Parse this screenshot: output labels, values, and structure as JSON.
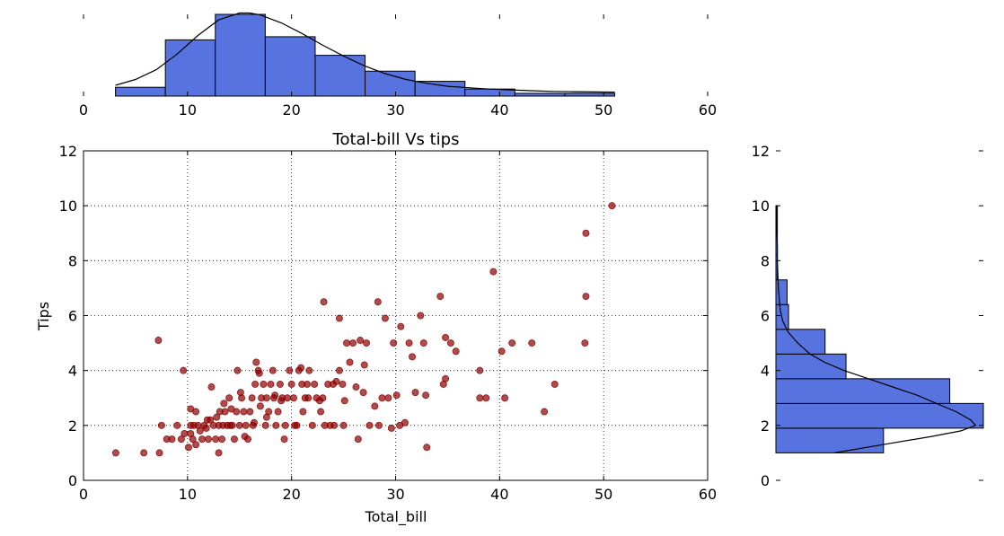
{
  "chart_data": [
    {
      "type": "scatter",
      "title": "Total-bill Vs tips",
      "xlabel": "Total_bill",
      "ylabel": "Tips",
      "xlim": [
        0,
        60
      ],
      "ylim": [
        0,
        12
      ],
      "xticks": [
        "0",
        "10",
        "20",
        "30",
        "40",
        "50",
        "60"
      ],
      "yticks": [
        "0",
        "2",
        "4",
        "6",
        "8",
        "10",
        "12"
      ],
      "grid": true,
      "marker_color": "#8b0000",
      "points": [
        [
          3.1,
          1.0
        ],
        [
          5.8,
          1.0
        ],
        [
          7.3,
          1.0
        ],
        [
          7.2,
          5.1
        ],
        [
          7.5,
          2.0
        ],
        [
          8.0,
          1.5
        ],
        [
          8.5,
          1.5
        ],
        [
          9.0,
          2.0
        ],
        [
          9.4,
          1.5
        ],
        [
          9.6,
          4.0
        ],
        [
          9.7,
          1.7
        ],
        [
          10.1,
          1.2
        ],
        [
          10.3,
          1.7
        ],
        [
          10.3,
          2.0
        ],
        [
          10.5,
          1.5
        ],
        [
          10.6,
          2.0
        ],
        [
          10.8,
          1.3
        ],
        [
          10.3,
          2.6
        ],
        [
          11.0,
          2.0
        ],
        [
          11.2,
          1.8
        ],
        [
          11.4,
          1.5
        ],
        [
          11.6,
          2.0
        ],
        [
          11.9,
          2.2
        ],
        [
          12.0,
          1.5
        ],
        [
          12.3,
          3.4
        ],
        [
          12.5,
          2.0
        ],
        [
          12.7,
          1.5
        ],
        [
          12.8,
          2.3
        ],
        [
          13.0,
          2.0
        ],
        [
          13.1,
          2.5
        ],
        [
          13.3,
          1.5
        ],
        [
          13.4,
          2.0
        ],
        [
          13.6,
          2.5
        ],
        [
          13.0,
          1.0
        ],
        [
          13.8,
          2.0
        ],
        [
          14.0,
          3.0
        ],
        [
          14.1,
          2.0
        ],
        [
          14.3,
          2.0
        ],
        [
          14.5,
          1.5
        ],
        [
          14.7,
          2.5
        ],
        [
          14.8,
          4.0
        ],
        [
          15.0,
          2.0
        ],
        [
          15.2,
          3.0
        ],
        [
          15.4,
          2.5
        ],
        [
          15.6,
          2.0
        ],
        [
          15.8,
          1.5
        ],
        [
          16.0,
          2.5
        ],
        [
          16.2,
          3.0
        ],
        [
          16.3,
          2.0
        ],
        [
          16.5,
          3.5
        ],
        [
          16.6,
          4.3
        ],
        [
          16.8,
          4.0
        ],
        [
          17.0,
          2.7
        ],
        [
          17.1,
          3.0
        ],
        [
          17.3,
          3.5
        ],
        [
          17.5,
          2.0
        ],
        [
          17.6,
          3.0
        ],
        [
          17.8,
          2.5
        ],
        [
          18.0,
          3.5
        ],
        [
          18.2,
          4.0
        ],
        [
          18.3,
          3.0
        ],
        [
          18.5,
          2.0
        ],
        [
          18.7,
          2.5
        ],
        [
          18.9,
          3.5
        ],
        [
          19.1,
          3.0
        ],
        [
          19.3,
          1.5
        ],
        [
          19.4,
          2.0
        ],
        [
          19.6,
          3.0
        ],
        [
          19.8,
          4.0
        ],
        [
          20.0,
          3.5
        ],
        [
          20.2,
          3.0
        ],
        [
          20.5,
          2.0
        ],
        [
          20.7,
          4.0
        ],
        [
          21.0,
          3.5
        ],
        [
          21.1,
          2.5
        ],
        [
          21.3,
          3.0
        ],
        [
          21.5,
          3.5
        ],
        [
          21.7,
          4.0
        ],
        [
          22.0,
          2.0
        ],
        [
          22.2,
          3.5
        ],
        [
          22.4,
          3.0
        ],
        [
          22.8,
          2.5
        ],
        [
          23.0,
          3.0
        ],
        [
          23.2,
          2.0
        ],
        [
          23.5,
          3.5
        ],
        [
          23.7,
          2.0
        ],
        [
          24.0,
          3.5
        ],
        [
          24.1,
          2.0
        ],
        [
          24.3,
          3.6
        ],
        [
          24.6,
          4.0
        ],
        [
          24.9,
          3.5
        ],
        [
          25.0,
          2.0
        ],
        [
          25.3,
          5.0
        ],
        [
          25.6,
          4.3
        ],
        [
          25.9,
          5.0
        ],
        [
          26.2,
          3.4
        ],
        [
          26.4,
          1.5
        ],
        [
          26.9,
          3.2
        ],
        [
          27.2,
          5.0
        ],
        [
          27.5,
          2.0
        ],
        [
          28.0,
          2.7
        ],
        [
          28.3,
          6.5
        ],
        [
          28.4,
          2.0
        ],
        [
          28.7,
          3.0
        ],
        [
          29.0,
          5.9
        ],
        [
          29.3,
          3.0
        ],
        [
          29.8,
          5.0
        ],
        [
          30.1,
          3.1
        ],
        [
          30.4,
          2.0
        ],
        [
          30.5,
          5.6
        ],
        [
          31.3,
          5.0
        ],
        [
          31.6,
          4.5
        ],
        [
          31.9,
          3.2
        ],
        [
          32.4,
          6.0
        ],
        [
          32.7,
          5.0
        ],
        [
          32.9,
          3.1
        ],
        [
          33.0,
          1.2
        ],
        [
          34.3,
          6.7
        ],
        [
          34.6,
          3.5
        ],
        [
          34.8,
          3.7
        ],
        [
          34.8,
          5.2
        ],
        [
          35.3,
          5.0
        ],
        [
          35.8,
          4.7
        ],
        [
          38.1,
          4.0
        ],
        [
          38.1,
          3.0
        ],
        [
          38.7,
          3.0
        ],
        [
          39.4,
          7.6
        ],
        [
          40.2,
          4.7
        ],
        [
          40.5,
          3.0
        ],
        [
          41.2,
          5.0
        ],
        [
          43.1,
          5.0
        ],
        [
          44.3,
          2.5
        ],
        [
          45.3,
          3.5
        ],
        [
          48.2,
          5.0
        ],
        [
          48.3,
          6.7
        ],
        [
          48.3,
          9.0
        ],
        [
          50.8,
          10.0
        ],
        [
          15.5,
          1.6
        ],
        [
          16.9,
          3.9
        ],
        [
          14.2,
          2.6
        ],
        [
          12.2,
          2.2
        ],
        [
          13.5,
          2.8
        ],
        [
          17.6,
          2.3
        ],
        [
          19.0,
          2.9
        ],
        [
          20.9,
          4.1
        ],
        [
          23.1,
          6.5
        ],
        [
          24.6,
          5.9
        ],
        [
          26.6,
          5.1
        ],
        [
          30.9,
          2.1
        ],
        [
          22.7,
          2.9
        ],
        [
          11.8,
          1.9
        ],
        [
          10.8,
          2.5
        ],
        [
          15.1,
          3.2
        ],
        [
          18.4,
          3.1
        ],
        [
          16.4,
          2.1
        ],
        [
          21.6,
          3.0
        ],
        [
          25.1,
          2.9
        ],
        [
          27.0,
          4.2
        ],
        [
          29.6,
          1.9
        ],
        [
          20.3,
          2.0
        ]
      ]
    },
    {
      "type": "histogram",
      "variable": "Total_bill",
      "orientation": "vertical",
      "xlim": [
        0,
        60
      ],
      "xticks": [
        "0",
        "10",
        "20",
        "30",
        "40",
        "50",
        "60"
      ],
      "bar_color": "#5673e0",
      "bins": [
        {
          "start": 3.07,
          "end": 7.87,
          "value": 0.009
        },
        {
          "start": 7.87,
          "end": 12.67,
          "value": 0.0575
        },
        {
          "start": 12.67,
          "end": 17.47,
          "value": 0.0836
        },
        {
          "start": 17.47,
          "end": 22.27,
          "value": 0.0607
        },
        {
          "start": 22.27,
          "end": 27.07,
          "value": 0.0417
        },
        {
          "start": 27.07,
          "end": 31.87,
          "value": 0.0255
        },
        {
          "start": 31.87,
          "end": 36.67,
          "value": 0.0151
        },
        {
          "start": 36.67,
          "end": 41.47,
          "value": 0.0072
        },
        {
          "start": 41.47,
          "end": 46.27,
          "value": 0.0028
        },
        {
          "start": 46.27,
          "end": 51.07,
          "value": 0.0028
        }
      ],
      "kde": [
        [
          3.07,
          0.011
        ],
        [
          5,
          0.017
        ],
        [
          7,
          0.027
        ],
        [
          9,
          0.043
        ],
        [
          11,
          0.062
        ],
        [
          13,
          0.078
        ],
        [
          15,
          0.085
        ],
        [
          16,
          0.085
        ],
        [
          17,
          0.083
        ],
        [
          19,
          0.075
        ],
        [
          21,
          0.064
        ],
        [
          23,
          0.052
        ],
        [
          25,
          0.041
        ],
        [
          27,
          0.031
        ],
        [
          29,
          0.023
        ],
        [
          31,
          0.017
        ],
        [
          33,
          0.013
        ],
        [
          35,
          0.01
        ],
        [
          37,
          0.0085
        ],
        [
          39,
          0.0072
        ],
        [
          41,
          0.0063
        ],
        [
          43,
          0.0055
        ],
        [
          45,
          0.0048
        ],
        [
          47,
          0.0045
        ],
        [
          49,
          0.0042
        ],
        [
          51.07,
          0.004
        ]
      ]
    },
    {
      "type": "histogram",
      "variable": "Tips",
      "orientation": "horizontal",
      "ylim": [
        0,
        12
      ],
      "yticks": [
        "0",
        "2",
        "4",
        "6",
        "8",
        "10",
        "12"
      ],
      "bar_color": "#5673e0",
      "bins": [
        {
          "start": 1.0,
          "end": 1.9,
          "value": 0.221
        },
        {
          "start": 1.9,
          "end": 2.8,
          "value": 0.426
        },
        {
          "start": 2.8,
          "end": 3.7,
          "value": 0.357
        },
        {
          "start": 3.7,
          "end": 4.6,
          "value": 0.144
        },
        {
          "start": 4.6,
          "end": 5.5,
          "value": 0.101
        },
        {
          "start": 5.5,
          "end": 6.4,
          "value": 0.026
        },
        {
          "start": 6.4,
          "end": 7.3,
          "value": 0.023
        },
        {
          "start": 7.3,
          "end": 8.2,
          "value": 0.003
        },
        {
          "start": 8.2,
          "end": 9.1,
          "value": 0.003
        },
        {
          "start": 9.1,
          "end": 10.0,
          "value": 0.003
        }
      ],
      "kde": [
        [
          1.0,
          0.12
        ],
        [
          1.3,
          0.22
        ],
        [
          1.6,
          0.32
        ],
        [
          1.8,
          0.38
        ],
        [
          2.0,
          0.41
        ],
        [
          2.2,
          0.4
        ],
        [
          2.5,
          0.37
        ],
        [
          2.8,
          0.33
        ],
        [
          3.1,
          0.29
        ],
        [
          3.4,
          0.24
        ],
        [
          3.7,
          0.19
        ],
        [
          4.0,
          0.14
        ],
        [
          4.3,
          0.1
        ],
        [
          4.6,
          0.07
        ],
        [
          5.0,
          0.045
        ],
        [
          5.4,
          0.025
        ],
        [
          5.8,
          0.014
        ],
        [
          6.2,
          0.009
        ],
        [
          6.6,
          0.007
        ],
        [
          7.0,
          0.005
        ],
        [
          7.5,
          0.004
        ],
        [
          8.0,
          0.003
        ],
        [
          8.5,
          0.003
        ],
        [
          9.0,
          0.002
        ],
        [
          9.5,
          0.002
        ],
        [
          10.0,
          0.001
        ]
      ]
    }
  ]
}
